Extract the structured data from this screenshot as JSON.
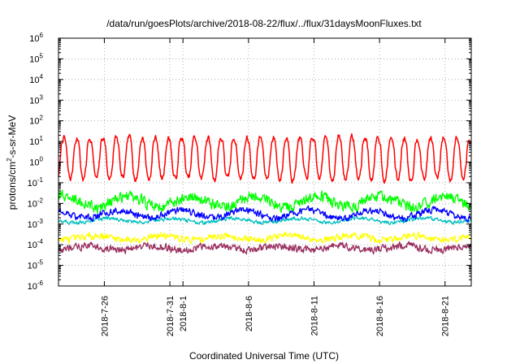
{
  "chart_data": {
    "type": "line",
    "title": "/data/run/goesPlots/archive/2018-08-22/flux/../flux/31daysMoonFluxes.txt",
    "xlabel": "Coordinated Universal Time (UTC)",
    "ylabel": "protons/cm²-s-sr-MeV",
    "ylabel_parts": {
      "a": "protons/cm",
      "sup": "2",
      "b": "-s-sr-MeV"
    },
    "yscale": "log",
    "ylim": [
      1e-06,
      1000000.0
    ],
    "y_ticks": [
      {
        "value": 1e-06,
        "base": "10",
        "exp": "-6"
      },
      {
        "value": 1e-05,
        "base": "10",
        "exp": "-5"
      },
      {
        "value": 0.0001,
        "base": "10",
        "exp": "-4"
      },
      {
        "value": 0.001,
        "base": "10",
        "exp": "-3"
      },
      {
        "value": 0.01,
        "base": "10",
        "exp": "-2"
      },
      {
        "value": 0.1,
        "base": "10",
        "exp": "-1"
      },
      {
        "value": 1,
        "base": "10",
        "exp": "0"
      },
      {
        "value": 10,
        "base": "10",
        "exp": "1"
      },
      {
        "value": 100,
        "base": "10",
        "exp": "2"
      },
      {
        "value": 1000,
        "base": "10",
        "exp": "3"
      },
      {
        "value": 10000,
        "base": "10",
        "exp": "4"
      },
      {
        "value": 100000,
        "base": "10",
        "exp": "5"
      },
      {
        "value": 1000000,
        "base": "10",
        "exp": "6"
      }
    ],
    "xlim": [
      "2018-07-22T12:00",
      "2018-08-23T00:00"
    ],
    "x_ticks": [
      "2018-7-26",
      "2018-7-31",
      "2018-8-1",
      "2018-8-6",
      "2018-8-11",
      "2018-8-16",
      "2018-8-21"
    ],
    "grid": true,
    "legend": "none",
    "series": [
      {
        "color": "#ff0000",
        "base": 1.5,
        "variation": "diurnal",
        "amplitude_decades": 1.0,
        "noise_decades": 0.25
      },
      {
        "color": "#00ff00",
        "base": 0.012,
        "variation": "noise",
        "amplitude_decades": 0.25,
        "noise_decades": 0.3
      },
      {
        "color": "#0000ff",
        "base": 0.003,
        "variation": "noise",
        "amplitude_decades": 0.2,
        "noise_decades": 0.18
      },
      {
        "color": "#00c0c0",
        "base": 0.0015,
        "variation": "noise",
        "amplitude_decades": 0.1,
        "noise_decades": 0.1
      },
      {
        "color": "#ffff00",
        "base": 0.00022,
        "variation": "noise",
        "amplitude_decades": 0.1,
        "noise_decades": 0.18
      },
      {
        "color": "#9a3060",
        "base": 7e-05,
        "variation": "noise",
        "amplitude_decades": 0.1,
        "noise_decades": 0.2
      }
    ]
  }
}
